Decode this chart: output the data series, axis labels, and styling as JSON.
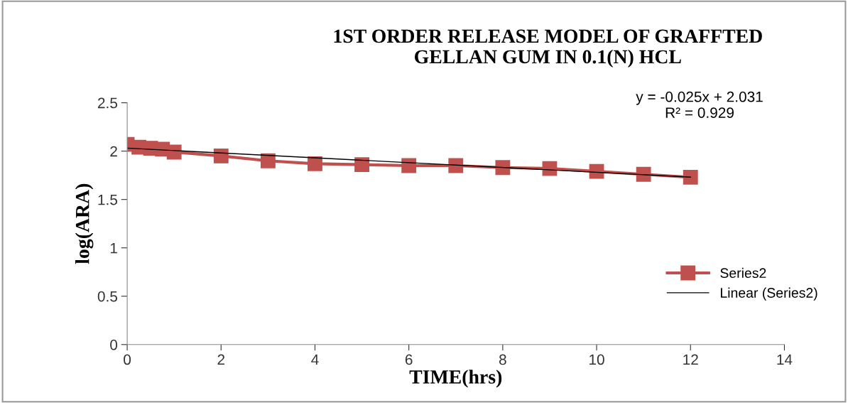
{
  "chart_data": {
    "type": "line",
    "title": "1ST ORDER RELEASE MODEL OF GRAFFTED\nGELLAN GUM IN 0.1(N) HCL",
    "xlabel": "TIME(hrs)",
    "ylabel": "log(ARA)",
    "series": [
      {
        "name": "Series2",
        "color": "#c0504d",
        "marker": "square",
        "x": [
          0,
          0.25,
          0.5,
          0.75,
          1,
          2,
          3,
          4,
          5,
          6,
          7,
          8,
          9,
          10,
          11,
          12
        ],
        "values": [
          2.07,
          2.04,
          2.03,
          2.02,
          1.99,
          1.95,
          1.9,
          1.87,
          1.86,
          1.85,
          1.85,
          1.83,
          1.82,
          1.79,
          1.76,
          1.73
        ]
      },
      {
        "name": "Linear (Series2)",
        "color": "#000000",
        "marker": "none",
        "x": [
          0,
          12
        ],
        "values": [
          2.031,
          1.731
        ]
      }
    ],
    "annotations": [
      "y = -0.025x + 2.031\nR² = 0.929"
    ],
    "xlim": [
      0,
      14
    ],
    "xticks": [
      0,
      2,
      4,
      6,
      8,
      10,
      12,
      14
    ],
    "ylim": [
      0,
      2.5
    ],
    "yticks": [
      0,
      0.5,
      1,
      1.5,
      2,
      2.5
    ],
    "grid": false,
    "legend": "right"
  }
}
